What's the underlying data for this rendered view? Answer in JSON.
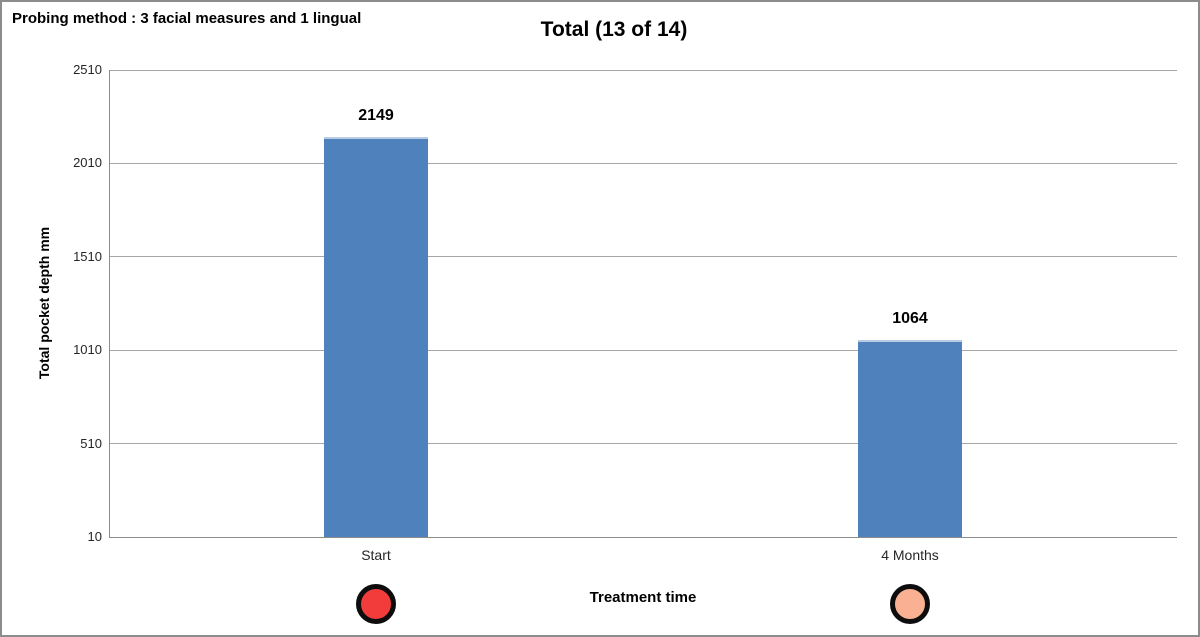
{
  "header": {
    "note": "Probing method : 3 facial measures and 1 lingual"
  },
  "chart_data": {
    "type": "bar",
    "title": "Total (13 of 14)",
    "xlabel": "Treatment time",
    "ylabel": "Total pocket depth mm",
    "categories": [
      "Start",
      "4 Months"
    ],
    "values": [
      2149,
      1064
    ],
    "value_labels": [
      "2149",
      "1064"
    ],
    "yticks": [
      2510,
      2010,
      1510,
      1010,
      510,
      10
    ],
    "ylim": [
      10,
      2510
    ],
    "grid": "horizontal",
    "legend": "none",
    "bar_color": "#4f81bd",
    "gridline_color": "#a6a6a6",
    "axis_color": "#8c8c8c",
    "category_markers": [
      {
        "name": "red-circle",
        "fill": "#f23c3c",
        "stroke": "#0d0d0d"
      },
      {
        "name": "salmon-circle",
        "fill": "#f9b093",
        "stroke": "#0d0d0d"
      }
    ]
  }
}
